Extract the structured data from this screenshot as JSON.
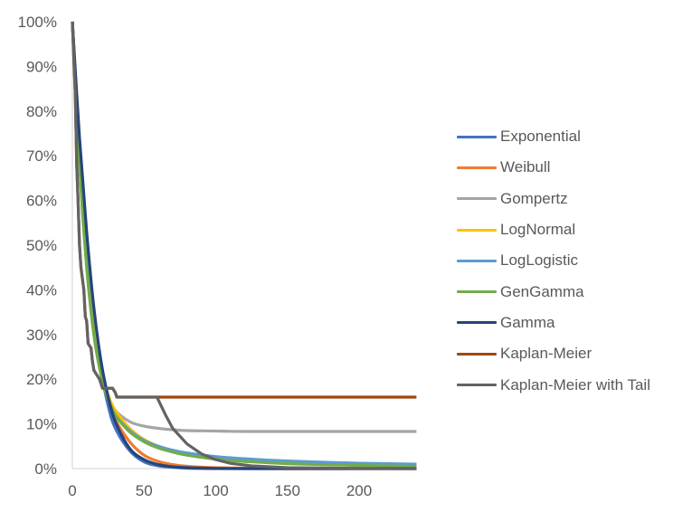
{
  "chart_data": {
    "type": "line",
    "title": "",
    "xlabel": "",
    "ylabel": "",
    "xlim": [
      0,
      240
    ],
    "ylim": [
      0,
      100
    ],
    "x_ticks": [
      0,
      50,
      100,
      150,
      200
    ],
    "x_tick_labels": [
      "0",
      "50",
      "100",
      "150",
      "200"
    ],
    "y_ticks": [
      0,
      10,
      20,
      30,
      40,
      50,
      60,
      70,
      80,
      90,
      100
    ],
    "y_tick_labels": [
      "0%",
      "10%",
      "20%",
      "30%",
      "40%",
      "50%",
      "60%",
      "70%",
      "80%",
      "90%",
      "100%"
    ],
    "grid": false,
    "legend_position": "right",
    "x": [
      0,
      5,
      10,
      15,
      20,
      25,
      30,
      40,
      50,
      60,
      70,
      80,
      100,
      120,
      150,
      200,
      240
    ],
    "series": [
      {
        "name": "Exponential",
        "color": "#4472C4",
        "values": [
          100,
          72,
          50,
          33,
          22,
          14,
          9,
          4,
          1.5,
          0.6,
          0.3,
          0.1,
          0,
          0,
          0,
          0,
          0
        ]
      },
      {
        "name": "Weibull",
        "color": "#ED7D31",
        "values": [
          100,
          70,
          48,
          33,
          22,
          16,
          11,
          6,
          3,
          1.6,
          0.9,
          0.5,
          0.2,
          0.1,
          0,
          0,
          0
        ]
      },
      {
        "name": "Gompertz",
        "color": "#A5A5A5",
        "values": [
          100,
          70,
          47,
          31,
          21,
          16,
          13,
          10.5,
          9.5,
          9,
          8.7,
          8.5,
          8.4,
          8.3,
          8.3,
          8.3,
          8.3
        ]
      },
      {
        "name": "LogNormal",
        "color": "#FFC000",
        "values": [
          100,
          68,
          46,
          31,
          22,
          16.5,
          13,
          9,
          6.5,
          5,
          4,
          3.3,
          2.4,
          1.8,
          1.3,
          0.9,
          0.7
        ]
      },
      {
        "name": "LogLogistic",
        "color": "#5B9BD5",
        "values": [
          100,
          69,
          46,
          30,
          21,
          15.5,
          12,
          8.5,
          6.3,
          5,
          4.1,
          3.5,
          2.7,
          2.2,
          1.7,
          1.2,
          1.0
        ]
      },
      {
        "name": "GenGamma",
        "color": "#70AD47",
        "values": [
          100,
          68,
          45,
          30,
          21,
          15.5,
          12,
          8.2,
          6,
          4.6,
          3.7,
          3,
          2.1,
          1.6,
          1.1,
          0.7,
          0.5
        ]
      },
      {
        "name": "Gamma",
        "color": "#264478",
        "values": [
          100,
          74,
          53,
          36,
          24,
          16,
          10.5,
          4.5,
          2,
          0.9,
          0.4,
          0.2,
          0.05,
          0,
          0,
          0,
          0
        ]
      },
      {
        "name": "Kaplan-Meier",
        "color": "#9E480E",
        "step_points": [
          [
            0,
            100
          ],
          [
            2,
            84
          ],
          [
            3,
            68
          ],
          [
            4,
            60
          ],
          [
            5,
            50
          ],
          [
            6,
            45
          ],
          [
            8,
            40
          ],
          [
            9,
            34
          ],
          [
            10,
            33
          ],
          [
            11,
            28
          ],
          [
            13,
            27
          ],
          [
            14,
            24
          ],
          [
            15,
            22
          ],
          [
            17,
            21
          ],
          [
            19,
            20
          ],
          [
            21,
            18
          ],
          [
            28,
            18
          ],
          [
            30,
            17
          ],
          [
            31,
            16
          ],
          [
            240,
            16
          ]
        ]
      },
      {
        "name": "Kaplan-Meier with Tail",
        "color": "#636363",
        "step_points": [
          [
            0,
            100
          ],
          [
            2,
            84
          ],
          [
            3,
            68
          ],
          [
            4,
            60
          ],
          [
            5,
            50
          ],
          [
            6,
            45
          ],
          [
            8,
            40
          ],
          [
            9,
            34
          ],
          [
            10,
            33
          ],
          [
            11,
            28
          ],
          [
            13,
            27
          ],
          [
            14,
            24
          ],
          [
            15,
            22
          ],
          [
            17,
            21
          ],
          [
            19,
            20
          ],
          [
            21,
            18
          ],
          [
            28,
            18
          ],
          [
            30,
            17
          ],
          [
            31,
            16
          ],
          [
            59,
            16
          ],
          [
            65,
            12
          ],
          [
            70,
            9
          ],
          [
            80,
            5.5
          ],
          [
            90,
            3.3
          ],
          [
            100,
            2
          ],
          [
            110,
            1.2
          ],
          [
            125,
            0.6
          ],
          [
            150,
            0.2
          ],
          [
            200,
            0.05
          ],
          [
            240,
            0
          ]
        ]
      }
    ]
  }
}
